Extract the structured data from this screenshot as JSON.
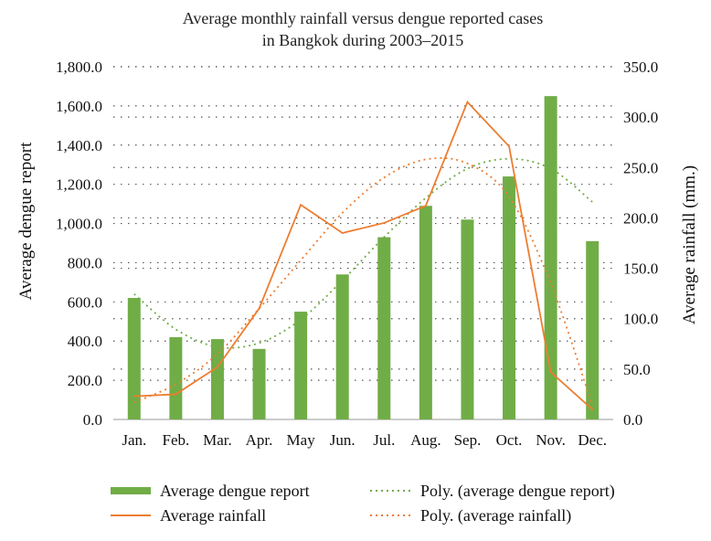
{
  "chart_data": {
    "type": "bar+line",
    "title": [
      "Average monthly rainfall versus dengue reported cases",
      "in Bangkok during 2003–2015"
    ],
    "categories": [
      "Jan.",
      "Feb.",
      "Mar.",
      "Apr.",
      "May",
      "Jun.",
      "Jul.",
      "Aug.",
      "Sep.",
      "Oct.",
      "Nov.",
      "Dec."
    ],
    "left_axis": {
      "label": "Average dengue report",
      "ylim": [
        0,
        1800
      ],
      "ticks": [
        0,
        200,
        400,
        600,
        800,
        1000,
        1200,
        1400,
        1600,
        1800
      ],
      "tick_labels": [
        "0.0",
        "200.0",
        "400.0",
        "600.0",
        "800.0",
        "1,000.0",
        "1,200.0",
        "1,400.0",
        "1,600.0",
        "1,800.0"
      ]
    },
    "right_axis": {
      "label": "Average rainfall (mm.)",
      "ylim": [
        0,
        350
      ],
      "ticks": [
        0,
        50,
        100,
        150,
        200,
        250,
        300,
        350
      ],
      "tick_labels": [
        "0.0",
        "50.0",
        "100.0",
        "150.0",
        "200.0",
        "250.0",
        "300.0",
        "350.0"
      ]
    },
    "series": [
      {
        "name": "Average dengue report",
        "kind": "bar",
        "axis": "left",
        "color": "#70ad47",
        "values": [
          620,
          420,
          410,
          360,
          550,
          740,
          930,
          1090,
          1020,
          1240,
          1650,
          910
        ]
      },
      {
        "name": "Average rainfall",
        "kind": "line",
        "axis": "right",
        "color": "#ed7d31",
        "values": [
          23,
          25,
          52,
          110,
          213,
          185,
          195,
          212,
          315,
          271,
          47,
          10
        ]
      },
      {
        "name": "Poly. (average dengue report)",
        "kind": "trend",
        "axis": "left",
        "color": "#70ad47",
        "values": [
          640,
          460,
          370,
          390,
          510,
          710,
          930,
          1130,
          1280,
          1330,
          1280,
          1110
        ]
      },
      {
        "name": "Poly. (average rainfall)",
        "kind": "trend",
        "axis": "right",
        "color": "#ed7d31",
        "values": [
          17,
          35,
          65,
          110,
          158,
          205,
          240,
          258,
          254,
          221,
          135,
          14
        ]
      }
    ],
    "legend_position": "bottom"
  }
}
